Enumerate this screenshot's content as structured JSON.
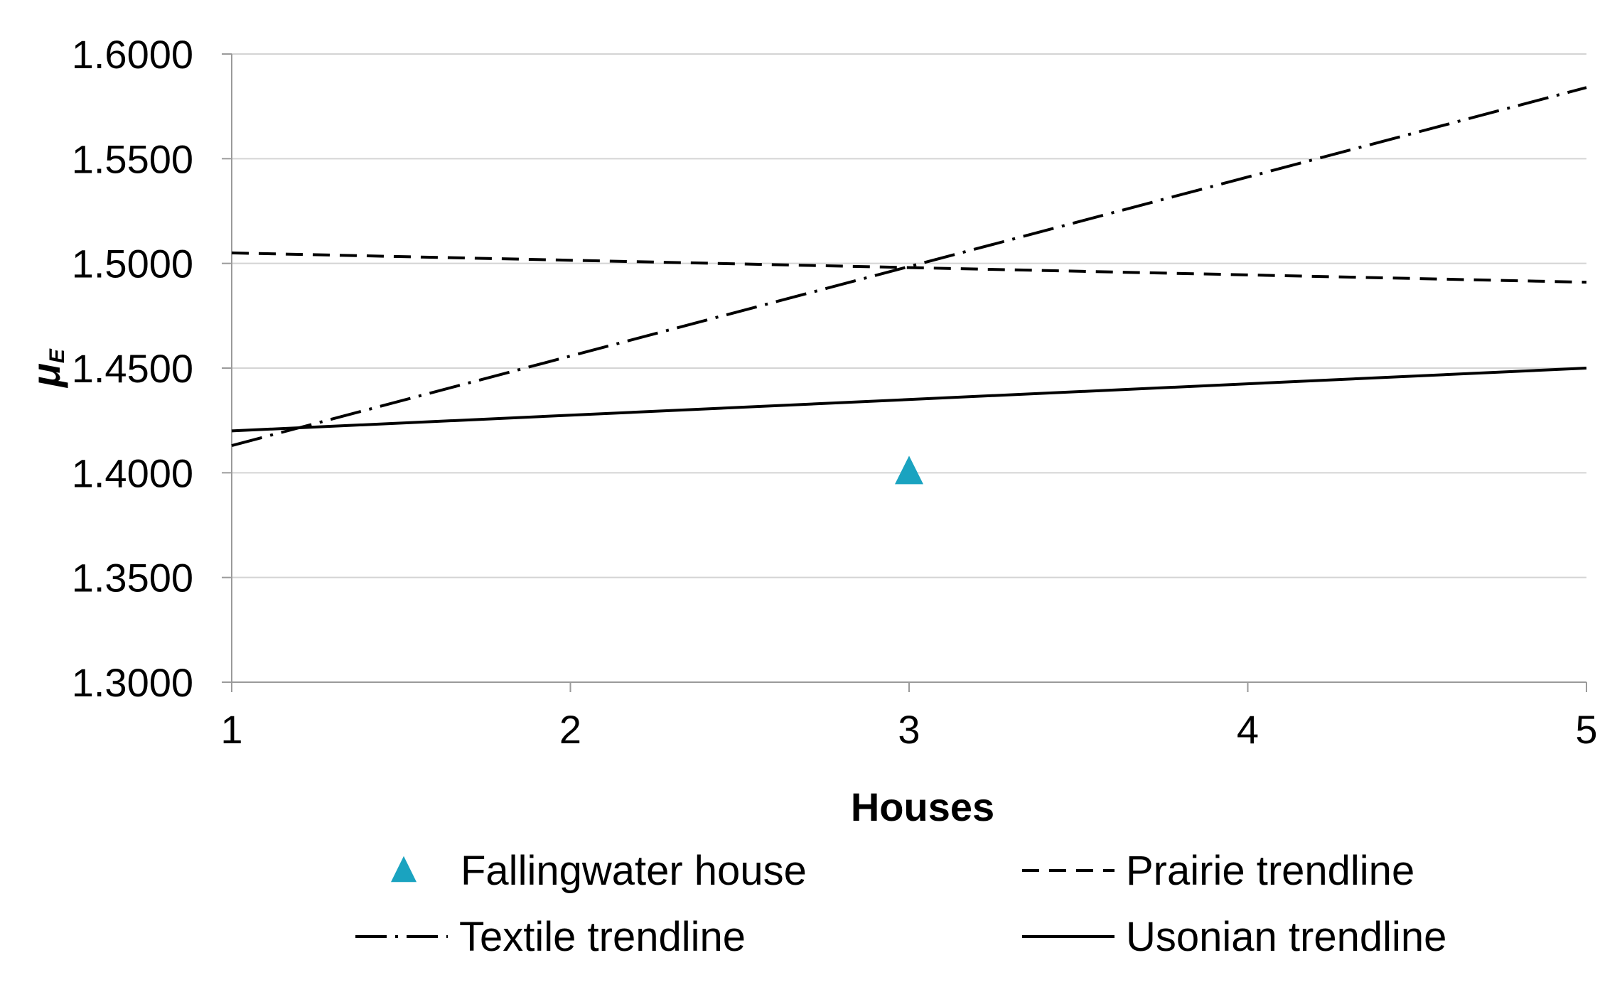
{
  "chart_data": {
    "type": "line",
    "title": "",
    "xlabel": "Houses",
    "ylabel": "μE",
    "ylabel_parts": {
      "symbol": "μ",
      "subscript": "E"
    },
    "xlim": [
      1,
      5
    ],
    "ylim": [
      1.3,
      1.6
    ],
    "xticks": [
      1,
      2,
      3,
      4,
      5
    ],
    "xtick_labels": [
      "1",
      "2",
      "3",
      "4",
      "5"
    ],
    "yticks": [
      1.3,
      1.35,
      1.4,
      1.45,
      1.5,
      1.55,
      1.6
    ],
    "ytick_labels": [
      "1.3000",
      "1.3500",
      "1.4000",
      "1.4500",
      "1.5000",
      "1.5500",
      "1.6000"
    ],
    "grid": true,
    "legend_position": "bottom",
    "series": [
      {
        "name": "Fallingwater house",
        "kind": "marker",
        "marker": "triangle",
        "color": "#1aa3c0",
        "points": [
          {
            "x": 3,
            "y": 1.4
          }
        ]
      },
      {
        "name": "Prairie trendline",
        "kind": "line",
        "style": "dashed",
        "color": "#000000",
        "points": [
          {
            "x": 1,
            "y": 1.505
          },
          {
            "x": 5,
            "y": 1.491
          }
        ]
      },
      {
        "name": "Textile trendline",
        "kind": "line",
        "style": "dash-dot",
        "color": "#000000",
        "points": [
          {
            "x": 1,
            "y": 1.413
          },
          {
            "x": 5,
            "y": 1.584
          }
        ]
      },
      {
        "name": "Usonian trendline",
        "kind": "line",
        "style": "solid",
        "color": "#000000",
        "points": [
          {
            "x": 1,
            "y": 1.42
          },
          {
            "x": 5,
            "y": 1.45
          }
        ]
      }
    ]
  },
  "colors": {
    "grid": "#d4d4d4",
    "axis": "#9a9a9a",
    "marker": "#1aa3c0",
    "lines": "#000000"
  }
}
